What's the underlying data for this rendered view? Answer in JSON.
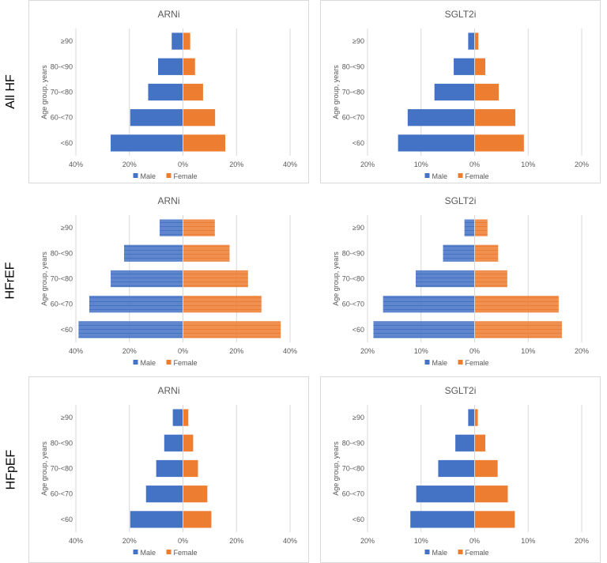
{
  "row_labels": [
    "All HF",
    "HFrEF",
    "HFpEF"
  ],
  "colors": {
    "male": "#4472C4",
    "female": "#ED7D31",
    "grid": "#d9d9d9"
  },
  "chart_data": [
    {
      "type": "bar",
      "orientation": "horizontal-pyramid",
      "row": "All HF",
      "title": "ARNi",
      "ylabel": "Age group, years",
      "categories": [
        "≥90",
        "80-<90",
        "70-<80",
        "60-<70",
        "<60"
      ],
      "series": [
        {
          "name": "Male",
          "values": [
            4.2,
            9.3,
            13.0,
            19.7,
            27.0
          ]
        },
        {
          "name": "Female",
          "values": [
            2.7,
            4.5,
            7.5,
            12.0,
            15.8
          ]
        }
      ],
      "xlim": [
        -40,
        40
      ],
      "xticks": [
        "40%",
        "20%",
        "0%",
        "20%",
        "40%"
      ],
      "tick_step": 20,
      "grid": true,
      "legend": "bottom"
    },
    {
      "type": "bar",
      "orientation": "horizontal-pyramid",
      "row": "All HF",
      "title": "SGLT2i",
      "ylabel": "Age group, years",
      "categories": [
        "≥90",
        "80-<90",
        "70-<80",
        "60-<70",
        "<60"
      ],
      "series": [
        {
          "name": "Male",
          "values": [
            1.2,
            3.9,
            7.5,
            12.5,
            14.3
          ]
        },
        {
          "name": "Female",
          "values": [
            0.7,
            2.0,
            4.5,
            7.6,
            9.2
          ]
        }
      ],
      "xlim": [
        -20,
        20
      ],
      "xticks": [
        "20%",
        "10%",
        "0%",
        "10%",
        "20%"
      ],
      "tick_step": 10,
      "grid": true,
      "legend": "bottom"
    },
    {
      "type": "bar",
      "orientation": "horizontal-pyramid",
      "row": "HFrEF",
      "title": "ARNi",
      "ylabel": "Age group, years",
      "categories": [
        "≥90",
        "80-<90",
        "70-<80",
        "60-<70",
        "<60"
      ],
      "series": [
        {
          "name": "Male",
          "values": [
            8.7,
            22.0,
            27.0,
            35.0,
            39.0
          ]
        },
        {
          "name": "Female",
          "values": [
            11.9,
            17.4,
            24.3,
            29.3,
            36.5
          ]
        }
      ],
      "xlim": [
        -40,
        40
      ],
      "xticks": [
        "40%",
        "20%",
        "0%",
        "20%",
        "40%"
      ],
      "tick_step": 20,
      "grid": true,
      "legend": "bottom",
      "striped": true
    },
    {
      "type": "bar",
      "orientation": "horizontal-pyramid",
      "row": "HFrEF",
      "title": "SGLT2i",
      "ylabel": "Age group, years",
      "categories": [
        "≥90",
        "80-<90",
        "70-<80",
        "60-<70",
        "<60"
      ],
      "series": [
        {
          "name": "Male",
          "values": [
            1.9,
            5.9,
            11.0,
            17.1,
            18.9
          ]
        },
        {
          "name": "Female",
          "values": [
            2.4,
            4.4,
            6.1,
            15.7,
            16.3
          ]
        }
      ],
      "xlim": [
        -20,
        20
      ],
      "xticks": [
        "20%",
        "10%",
        "0%",
        "10%",
        "20%"
      ],
      "tick_step": 10,
      "grid": true,
      "legend": "bottom",
      "striped": true
    },
    {
      "type": "bar",
      "orientation": "horizontal-pyramid",
      "row": "HFpEF",
      "title": "ARNi",
      "ylabel": "Age group, years",
      "categories": [
        "≥90",
        "80-<90",
        "70-<80",
        "60-<70",
        "<60"
      ],
      "series": [
        {
          "name": "Male",
          "values": [
            3.8,
            7.0,
            10.0,
            13.8,
            19.7
          ]
        },
        {
          "name": "Female",
          "values": [
            2.0,
            3.8,
            5.6,
            9.1,
            10.6
          ]
        }
      ],
      "xlim": [
        -40,
        40
      ],
      "xticks": [
        "40%",
        "20%",
        "0%",
        "20%",
        "40%"
      ],
      "tick_step": 20,
      "grid": true,
      "legend": "bottom"
    },
    {
      "type": "bar",
      "orientation": "horizontal-pyramid",
      "row": "HFpEF",
      "title": "SGLT2i",
      "ylabel": "Age group, years",
      "categories": [
        "≥90",
        "80-<90",
        "70-<80",
        "60-<70",
        "<60"
      ],
      "series": [
        {
          "name": "Male",
          "values": [
            1.2,
            3.6,
            6.8,
            10.9,
            12.0
          ]
        },
        {
          "name": "Female",
          "values": [
            0.6,
            2.0,
            4.3,
            6.2,
            7.5
          ]
        }
      ],
      "xlim": [
        -20,
        20
      ],
      "xticks": [
        "20%",
        "10%",
        "0%",
        "10%",
        "20%"
      ],
      "tick_step": 10,
      "grid": true,
      "legend": "bottom"
    }
  ]
}
